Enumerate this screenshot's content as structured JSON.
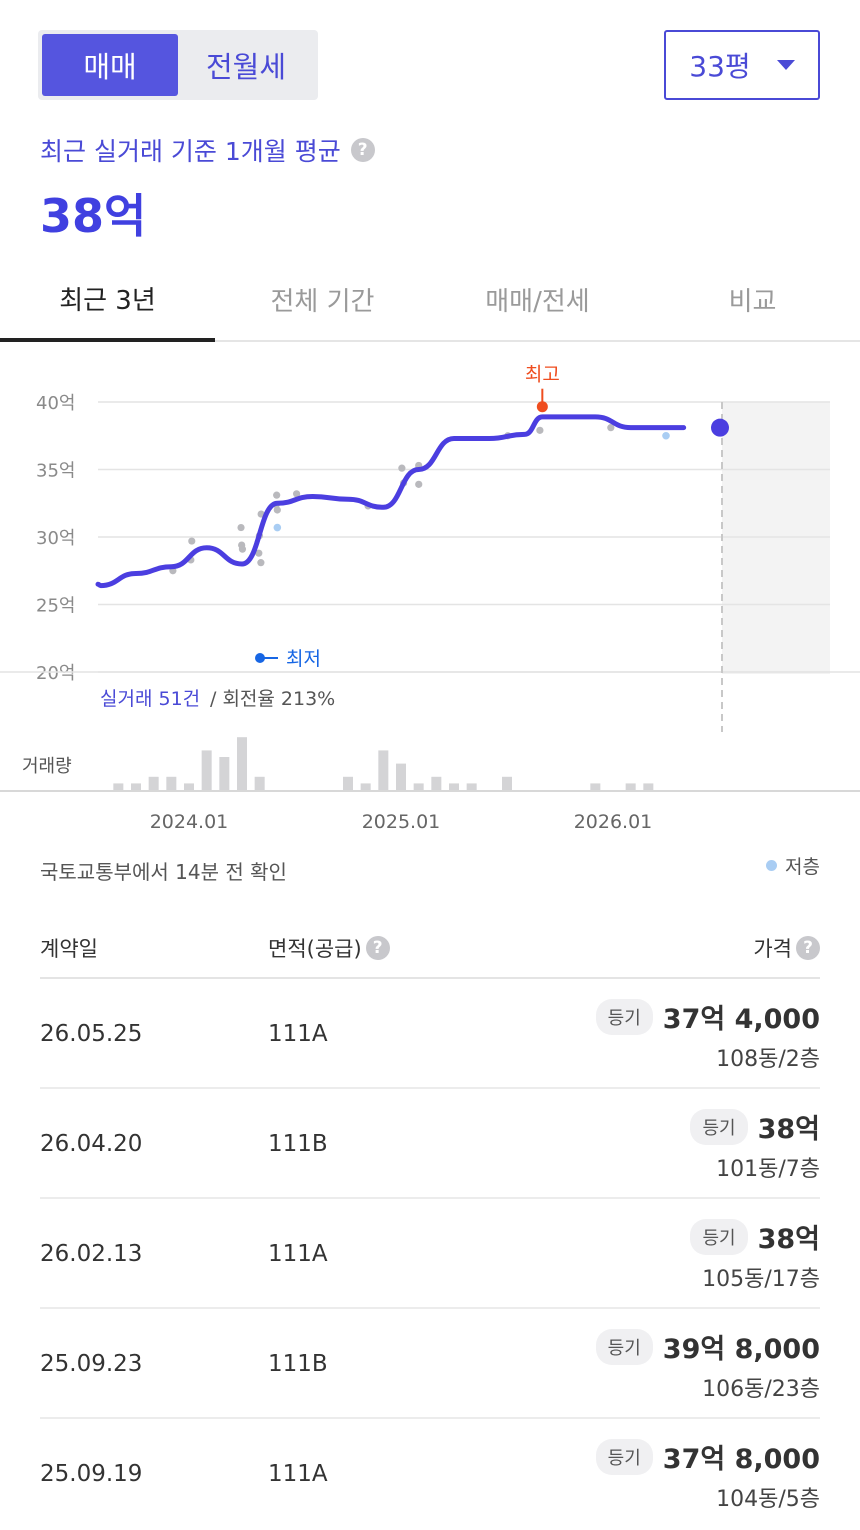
{
  "trade_type": {
    "sale_label": "매매",
    "rent_label": "전월세"
  },
  "size_select": {
    "value": "33평"
  },
  "summary": {
    "label": "최근 실거래 기준 1개월 평균",
    "value": "38억"
  },
  "tabs": [
    {
      "label": "최근 3년"
    },
    {
      "label": "전체 기간"
    },
    {
      "label": "매매/전세"
    },
    {
      "label": "비교"
    }
  ],
  "chart_data": {
    "type": "line",
    "title": "",
    "y_unit": "억",
    "y_ticks": [
      "40억",
      "35억",
      "30억",
      "25억",
      "20억"
    ],
    "ylim": [
      20,
      40
    ],
    "x_ticks": [
      "2024.01",
      "2025.01",
      "2026.01"
    ],
    "series": [
      {
        "values": [
          [
            "2023.06",
            26.5
          ],
          [
            "2023.08",
            26.4
          ],
          [
            "2023.10",
            27.3
          ],
          [
            "2023.12",
            27.8
          ],
          [
            "2024.02",
            29.2
          ],
          [
            "2024.04",
            28.0
          ],
          [
            "2024.06",
            32.5
          ],
          [
            "2024.08",
            33.0
          ],
          [
            "2024.10",
            32.8
          ],
          [
            "2024.12",
            32.2
          ],
          [
            "2025.02",
            35.0
          ],
          [
            "2025.04",
            37.3
          ],
          [
            "2025.06",
            37.3
          ],
          [
            "2025.08",
            37.6
          ],
          [
            "2025.09",
            38.9
          ],
          [
            "2025.11",
            38.9
          ],
          [
            "2025.12",
            38.9
          ],
          [
            "2026.02",
            38.1
          ],
          [
            "2026.05",
            38.1
          ]
        ]
      }
    ],
    "high_label": "최고",
    "high_point": [
      "2025.09",
      39.8
    ],
    "low_label": "최저",
    "transactions": [
      [
        "2023.12",
        27.5
      ],
      [
        "2024.01",
        28.3
      ],
      [
        "2024.01",
        29.7
      ],
      [
        "2024.04",
        30.7
      ],
      [
        "2024.04",
        29.4
      ],
      [
        "2024.04",
        29.1
      ],
      [
        "2024.05",
        28.1
      ],
      [
        "2024.05",
        28.8
      ],
      [
        "2024.05",
        30.1
      ],
      [
        "2024.05",
        31.7
      ],
      [
        "2024.06",
        32.0
      ],
      [
        "2024.06",
        33.1
      ],
      [
        "2024.06",
        32.4
      ],
      [
        "2024.07",
        33.2
      ],
      [
        "2024.11",
        32.3
      ],
      [
        "2025.01",
        34.0
      ],
      [
        "2025.01",
        35.1
      ],
      [
        "2025.02",
        33.9
      ],
      [
        "2025.02",
        35.3
      ],
      [
        "2025.07",
        37.5
      ],
      [
        "2025.09",
        37.9
      ],
      [
        "2026.01",
        38.1
      ]
    ],
    "low_floor_transactions": [
      [
        "2024.06",
        30.7
      ],
      [
        "2026.04",
        37.5
      ]
    ],
    "summary_count": "실거래 51건",
    "summary_turnover": "/ 회전율 213%",
    "volume_label": "거래량",
    "volume": [
      [
        "2023.09",
        1
      ],
      [
        "2023.10",
        1
      ],
      [
        "2023.11",
        2
      ],
      [
        "2023.12",
        2
      ],
      [
        "2024.01",
        1
      ],
      [
        "2024.02",
        6
      ],
      [
        "2024.03",
        5
      ],
      [
        "2024.04",
        8
      ],
      [
        "2024.05",
        2
      ],
      [
        "2024.10",
        2
      ],
      [
        "2024.11",
        1
      ],
      [
        "2024.12",
        6
      ],
      [
        "2025.01",
        4
      ],
      [
        "2025.02",
        1
      ],
      [
        "2025.03",
        2
      ],
      [
        "2025.04",
        1
      ],
      [
        "2025.05",
        1
      ],
      [
        "2025.07",
        2
      ],
      [
        "2025.12",
        1
      ],
      [
        "2026.02",
        1
      ],
      [
        "2026.03",
        1
      ]
    ]
  },
  "source_note": "국토교통부에서 14분 전 확인",
  "legend_low": "저층",
  "table": {
    "headers": {
      "date": "계약일",
      "area": "면적(공급)",
      "price": "가격"
    },
    "rows": [
      {
        "date": "26.05.25",
        "area": "111A",
        "badge": "등기",
        "price": "37억 4,000",
        "unit": "108동/2층"
      },
      {
        "date": "26.04.20",
        "area": "111B",
        "badge": "등기",
        "price": "38억",
        "unit": "101동/7층"
      },
      {
        "date": "26.02.13",
        "area": "111A",
        "badge": "등기",
        "price": "38억",
        "unit": "105동/17층"
      },
      {
        "date": "25.09.23",
        "area": "111B",
        "badge": "등기",
        "price": "39억 8,000",
        "unit": "106동/23층"
      },
      {
        "date": "25.09.19",
        "area": "111A",
        "badge": "등기",
        "price": "37억 8,000",
        "unit": "104동/5층"
      }
    ]
  },
  "colors": {
    "accent": "#4a4ad6",
    "line": "#4b3ee0",
    "high": "#ef4d1f",
    "low": "#1766e4",
    "low_floor": "#a9cdf3"
  }
}
